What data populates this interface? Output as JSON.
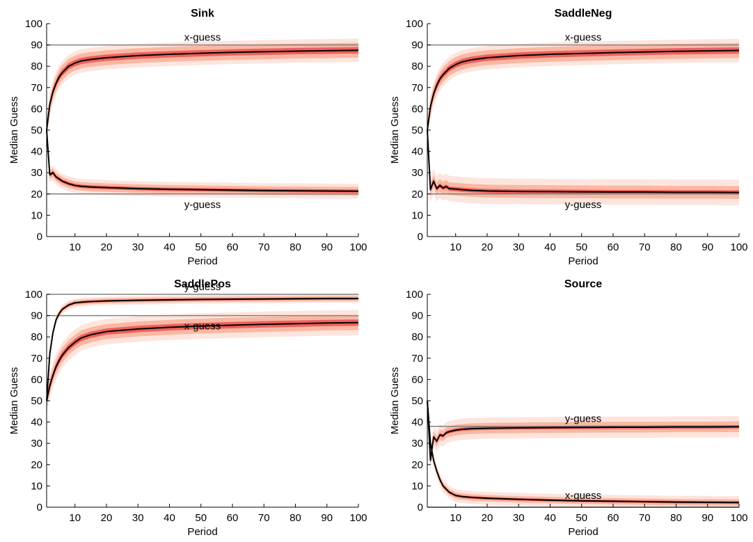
{
  "colors": {
    "band_outer": "#fde1d8",
    "band_mid": "#f8a88e",
    "band_inner": "#ea4b4b",
    "median": "#000000",
    "reference": "#808080"
  },
  "chart_data": [
    {
      "type": "line",
      "title": "Sink",
      "xlabel": "Period",
      "ylabel": "Median Guess",
      "xlim": [
        1,
        100
      ],
      "ylim": [
        0,
        100
      ],
      "xticks": [
        10,
        20,
        30,
        40,
        50,
        60,
        70,
        80,
        90,
        100
      ],
      "yticks": [
        0,
        10,
        20,
        30,
        40,
        50,
        60,
        70,
        80,
        90,
        100
      ],
      "grid": false,
      "reference_lines": [
        {
          "label": "x-guess",
          "y": 90
        },
        {
          "label": "y-guess",
          "y": 20
        }
      ],
      "series": [
        {
          "x": [
            1,
            2,
            3,
            4,
            5,
            6,
            8,
            10,
            12,
            15,
            20,
            30,
            40,
            50,
            60,
            70,
            80,
            90,
            100
          ],
          "values": [
            50,
            62,
            68,
            72,
            75,
            77,
            80,
            81.5,
            82.5,
            83.2,
            84,
            85,
            85.6,
            86.1,
            86.5,
            86.8,
            87.1,
            87.3,
            87.5
          ],
          "band": [
            1.5,
            3.5,
            5.5
          ]
        },
        {
          "x": [
            1,
            2,
            3,
            4,
            5,
            6,
            8,
            10,
            12,
            15,
            20,
            30,
            40,
            50,
            60,
            70,
            80,
            90,
            100
          ],
          "values": [
            50,
            29,
            30,
            28,
            27,
            26,
            24.8,
            24,
            23.6,
            23.3,
            23,
            22.5,
            22.2,
            22,
            21.8,
            21.6,
            21.5,
            21.4,
            21.3
          ],
          "band": [
            0.8,
            2,
            3.5
          ]
        }
      ]
    },
    {
      "type": "line",
      "title": "SaddleNeg",
      "xlabel": "Period",
      "ylabel": "Median Guess",
      "xlim": [
        1,
        100
      ],
      "ylim": [
        0,
        100
      ],
      "xticks": [
        10,
        20,
        30,
        40,
        50,
        60,
        70,
        80,
        90,
        100
      ],
      "yticks": [
        0,
        10,
        20,
        30,
        40,
        50,
        60,
        70,
        80,
        90,
        100
      ],
      "grid": false,
      "reference_lines": [
        {
          "label": "x-guess",
          "y": 90
        },
        {
          "label": "y-guess",
          "y": 20
        }
      ],
      "series": [
        {
          "x": [
            1,
            2,
            3,
            4,
            5,
            6,
            8,
            10,
            12,
            15,
            20,
            30,
            40,
            50,
            60,
            70,
            80,
            90,
            100
          ],
          "values": [
            50,
            61,
            67,
            71,
            74,
            76,
            79,
            80.8,
            82,
            83,
            84,
            85,
            85.6,
            86,
            86.4,
            86.7,
            87,
            87.2,
            87.4
          ],
          "band": [
            1.5,
            3.5,
            5.5
          ]
        },
        {
          "x": [
            1,
            2,
            3,
            4,
            5,
            6,
            7,
            8,
            10,
            12,
            15,
            20,
            30,
            40,
            50,
            60,
            70,
            80,
            90,
            100
          ],
          "values": [
            50,
            22,
            26,
            22.5,
            24,
            22.8,
            23.5,
            22.5,
            22.3,
            22,
            21.7,
            21.4,
            21.2,
            21.1,
            21,
            20.9,
            20.9,
            20.8,
            20.8,
            20.7
          ],
          "band": [
            1,
            3,
            6
          ]
        }
      ]
    },
    {
      "type": "line",
      "title": "SaddlePos",
      "xlabel": "Period",
      "ylabel": "Median Guess",
      "xlim": [
        1,
        100
      ],
      "ylim": [
        0,
        100
      ],
      "xticks": [
        10,
        20,
        30,
        40,
        50,
        60,
        70,
        80,
        90,
        100
      ],
      "yticks": [
        0,
        10,
        20,
        30,
        40,
        50,
        60,
        70,
        80,
        90,
        100
      ],
      "grid": false,
      "reference_lines": [
        {
          "label": "y-guess",
          "y": 100
        },
        {
          "label": "x-guess",
          "y": 90
        }
      ],
      "series": [
        {
          "x": [
            1,
            2,
            3,
            4,
            5,
            6,
            8,
            10,
            12,
            15,
            20,
            30,
            40,
            50,
            60,
            70,
            80,
            90,
            100
          ],
          "values": [
            50,
            72,
            82,
            88,
            91,
            93,
            95,
            96,
            96.3,
            96.6,
            96.9,
            97.2,
            97.4,
            97.6,
            97.7,
            97.8,
            97.9,
            98,
            98
          ],
          "band": [
            0.5,
            1.2,
            2
          ]
        },
        {
          "x": [
            1,
            2,
            3,
            4,
            5,
            6,
            8,
            10,
            12,
            15,
            20,
            30,
            40,
            50,
            60,
            70,
            80,
            90,
            100
          ],
          "values": [
            50,
            57,
            62,
            66,
            69,
            71.5,
            75,
            77.5,
            79.5,
            81,
            82.5,
            83.7,
            84.5,
            85.1,
            85.5,
            85.9,
            86.2,
            86.5,
            86.7
          ],
          "band": [
            1.5,
            3.5,
            6
          ]
        }
      ]
    },
    {
      "type": "line",
      "title": "Source",
      "xlabel": "Period",
      "ylabel": "Median Guess",
      "xlim": [
        1,
        100
      ],
      "ylim": [
        0,
        100
      ],
      "xticks": [
        10,
        20,
        30,
        40,
        50,
        60,
        70,
        80,
        90,
        100
      ],
      "yticks": [
        0,
        10,
        20,
        30,
        40,
        50,
        60,
        70,
        80,
        90,
        100
      ],
      "grid": false,
      "reference_lines": [
        {
          "label": "y-guess",
          "y": 38
        },
        {
          "label": "x-guess",
          "y": 0
        }
      ],
      "series": [
        {
          "x": [
            1,
            2,
            3,
            4,
            5,
            6,
            7,
            8,
            10,
            12,
            15,
            20,
            30,
            40,
            50,
            60,
            70,
            80,
            90,
            100
          ],
          "values": [
            50,
            22,
            33,
            31,
            34,
            33.5,
            35,
            35.5,
            36.2,
            36.6,
            36.9,
            37.1,
            37.3,
            37.4,
            37.5,
            37.6,
            37.6,
            37.7,
            37.7,
            37.8
          ],
          "band": [
            0.8,
            2.5,
            5
          ]
        },
        {
          "x": [
            1,
            2,
            3,
            4,
            5,
            6,
            7,
            8,
            10,
            12,
            15,
            20,
            30,
            40,
            50,
            60,
            70,
            80,
            90,
            100
          ],
          "values": [
            50,
            30,
            22,
            17,
            13,
            10,
            8.5,
            7,
            5.5,
            5,
            4.6,
            4.2,
            3.7,
            3.3,
            3,
            2.8,
            2.6,
            2.4,
            2.3,
            2.2
          ],
          "band": [
            0.6,
            1.5,
            3
          ]
        }
      ]
    }
  ]
}
